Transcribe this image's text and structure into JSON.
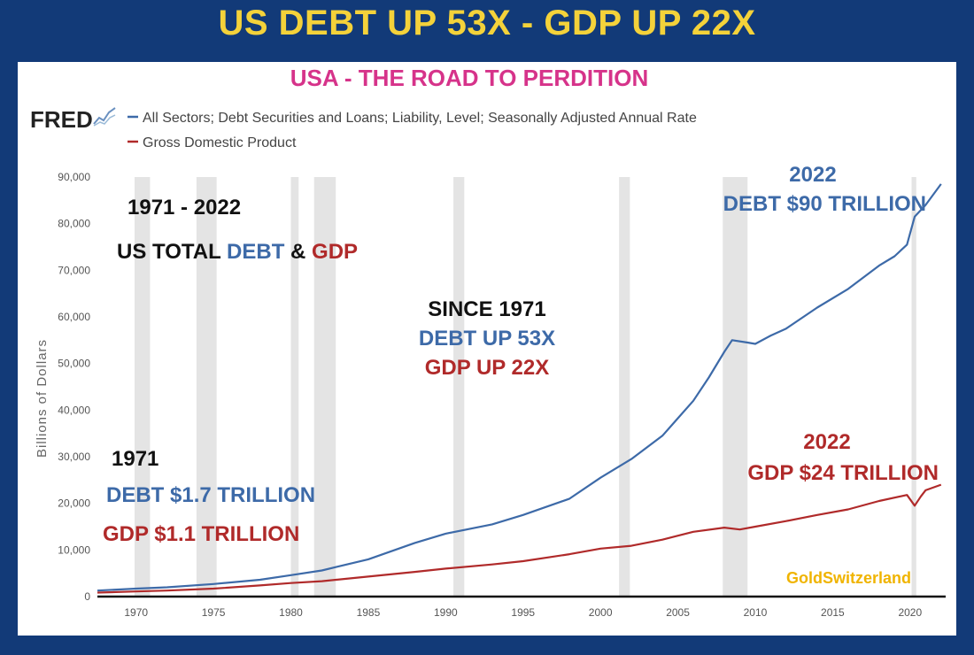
{
  "headline": "US DEBT UP 53X - GDP UP 22X",
  "colors": {
    "background": "#123a78",
    "headline": "#f4d23a",
    "title": "#d6338a",
    "debt": "#3d6aa8",
    "gdp": "#b02a2a",
    "recession": "#e4e4e4",
    "watermark": "#f0b400"
  },
  "brand": {
    "logo": "FRED",
    "logo_icon": "line-chart-icon",
    "watermark": "GoldSwitzerland"
  },
  "annotations": {
    "period": "1971 - 2022",
    "title_prefix": "US TOTAL ",
    "title_debt": "DEBT",
    "title_amp": " & ",
    "title_gdp": "GDP",
    "since_label": "SINCE 1971",
    "since_debt": "DEBT UP 53X",
    "since_gdp": "GDP UP 22X",
    "start_year": "1971",
    "start_debt": "DEBT $1.7 TRILLION",
    "start_gdp": "GDP $1.1 TRILLION",
    "end_debt_year": "2022",
    "end_debt": "DEBT $90 TRILLION",
    "end_gdp_year": "2022",
    "end_gdp": "GDP $24 TRILLION"
  },
  "chart_data": {
    "type": "line",
    "title": "USA - THE ROAD TO PERDITION",
    "xlabel": "",
    "ylabel": "Billions of Dollars",
    "xlim": [
      1967.5,
      2022.3
    ],
    "ylim": [
      0,
      90000
    ],
    "x_ticks": [
      1970,
      1975,
      1980,
      1985,
      1990,
      1995,
      2000,
      2005,
      2010,
      2015,
      2020
    ],
    "y_ticks": [
      0,
      10000,
      20000,
      30000,
      40000,
      50000,
      60000,
      70000,
      80000,
      90000
    ],
    "y_tick_labels": [
      "0",
      "10,000",
      "20,000",
      "30,000",
      "40,000",
      "50,000",
      "60,000",
      "70,000",
      "80,000",
      "90,000"
    ],
    "recessions": [
      [
        1969.9,
        1970.9
      ],
      [
        1973.9,
        1975.2
      ],
      [
        1980.0,
        1980.5
      ],
      [
        1981.5,
        1982.9
      ],
      [
        1990.5,
        1991.2
      ],
      [
        2001.2,
        2001.9
      ],
      [
        2007.9,
        2009.5
      ],
      [
        2020.1,
        2020.4
      ]
    ],
    "legend": [
      "All Sectors; Debt Securities and Loans; Liability, Level; Seasonally Adjusted Annual Rate",
      "Gross Domestic Product"
    ],
    "legend_position": "top-left",
    "grid": false,
    "series": [
      {
        "name": "All Sectors; Debt Securities and Loans; Liability, Level; Seasonally Adjusted Annual Rate",
        "color": "#3d6aa8",
        "x": [
          1967.5,
          1970,
          1972,
          1975,
          1978,
          1980,
          1982,
          1985,
          1988,
          1990,
          1993,
          1995,
          1998,
          2000,
          2002,
          2004,
          2006,
          2007,
          2008,
          2008.5,
          2009.5,
          2010,
          2011,
          2012,
          2014,
          2016,
          2018,
          2019,
          2019.8,
          2020.3,
          2021,
          2022
        ],
        "values": [
          1300,
          1700,
          2000,
          2700,
          3600,
          4600,
          5600,
          8000,
          11500,
          13500,
          15500,
          17500,
          21000,
          25500,
          29500,
          34500,
          42000,
          47000,
          52500,
          55000,
          54500,
          54200,
          56000,
          57500,
          62000,
          66000,
          71000,
          73000,
          75500,
          81500,
          84000,
          88500
        ]
      },
      {
        "name": "Gross Domestic Product",
        "color": "#b02a2a",
        "x": [
          1967.5,
          1970,
          1972,
          1975,
          1978,
          1980,
          1982,
          1985,
          1988,
          1990,
          1993,
          1995,
          1998,
          2000,
          2002,
          2004,
          2006,
          2008,
          2009,
          2010,
          2012,
          2014,
          2016,
          2018,
          2019.8,
          2020.3,
          2020.7,
          2021,
          2022
        ],
        "values": [
          860,
          1100,
          1300,
          1700,
          2400,
          2900,
          3300,
          4300,
          5300,
          6000,
          6900,
          7600,
          9100,
          10300,
          10900,
          12200,
          13900,
          14800,
          14400,
          15000,
          16200,
          17500,
          18700,
          20500,
          21800,
          19500,
          21500,
          22800,
          24000
        ]
      }
    ]
  }
}
